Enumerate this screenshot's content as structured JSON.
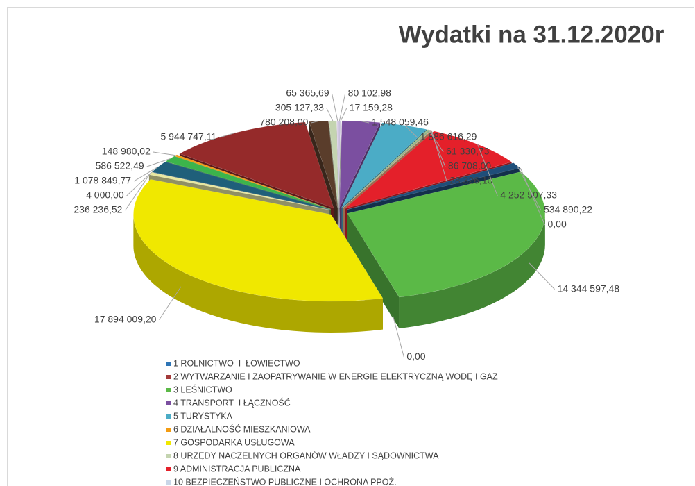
{
  "chart_data": {
    "type": "pie3d",
    "title": "Wydatki na 31.12.2020r",
    "values": [
      80102.98,
      17159.28,
      1548059.46,
      1886616.29,
      61330.73,
      86708.0,
      28326.1,
      4252507.33,
      534890.22,
      0,
      14344597.48,
      0,
      17894009.2,
      236236.52,
      4000.0,
      1078849.77,
      586522.49,
      148980.02,
      5944747.11,
      780208.0,
      305127.33,
      65365.69
    ],
    "value_labels": [
      "80 102,98",
      "17 159,28",
      "1 548 059,46",
      "1 886 616,29",
      "61 330,73",
      "86 708,00",
      "28 326,10",
      "4 252 507,33",
      "534 890,22",
      "0,00",
      "14 344 597,48",
      "0,00",
      "17 894 009,20",
      "236 236,52",
      "4 000,00",
      "1 078 849,77",
      "586 522,49",
      "148 980,02",
      "5 944 747,11",
      "780 208,00",
      "305 127,33",
      "65 365,69"
    ],
    "colors": [
      "#c9c0dc",
      "#e6e6e6",
      "#7b4fa0",
      "#4bacc6",
      "#a5c78a",
      "#8fb08c",
      "#f4b183",
      "#e4202a",
      "#1f4e79",
      "#888888",
      "#5bb947",
      "#6b4a7a",
      "#f0e800",
      "#e8e8a0",
      "#cccccc",
      "#1f5f7a",
      "#3cb44b",
      "#f39c12",
      "#952a2a",
      "#5a3d2b",
      "#c4d4b0",
      "#dcd0e8"
    ],
    "legend": {
      "entries": [
        {
          "name": "1 ROLNICTWO  I  ŁOWIECTWO",
          "color": "#2e75b6"
        },
        {
          "name": "2 WYTWARZANIE I ZAOPATRYWANIE W ENERGIE ELEKTRYCZNĄ WODĘ I GAZ",
          "color": "#a33a3a"
        },
        {
          "name": "3 LEŚNICTWO",
          "color": "#5bb947"
        },
        {
          "name": "4 TRANSPORT  I ŁĄCZNOŚĆ",
          "color": "#7b4fa0"
        },
        {
          "name": "5 TURYSTYKA",
          "color": "#4bacc6"
        },
        {
          "name": "6 DZIAŁALNOŚĆ MIESZKANIOWA",
          "color": "#f39c12"
        },
        {
          "name": "7 GOSPODARKA USŁUGOWA",
          "color": "#f0e800"
        },
        {
          "name": "8 URZĘDY NACZELNYCH ORGANÓW WŁADZY I SĄDOWNICTWA",
          "color": "#c4d4b0"
        },
        {
          "name": "9 ADMINISTRACJA PUBLICZNA",
          "color": "#e4202a"
        },
        {
          "name": "10 BEZPIECZEŃSTWO PUBLICZNE I OCHRONA PPOŻ.",
          "color": "#c9d6e8"
        }
      ]
    }
  }
}
